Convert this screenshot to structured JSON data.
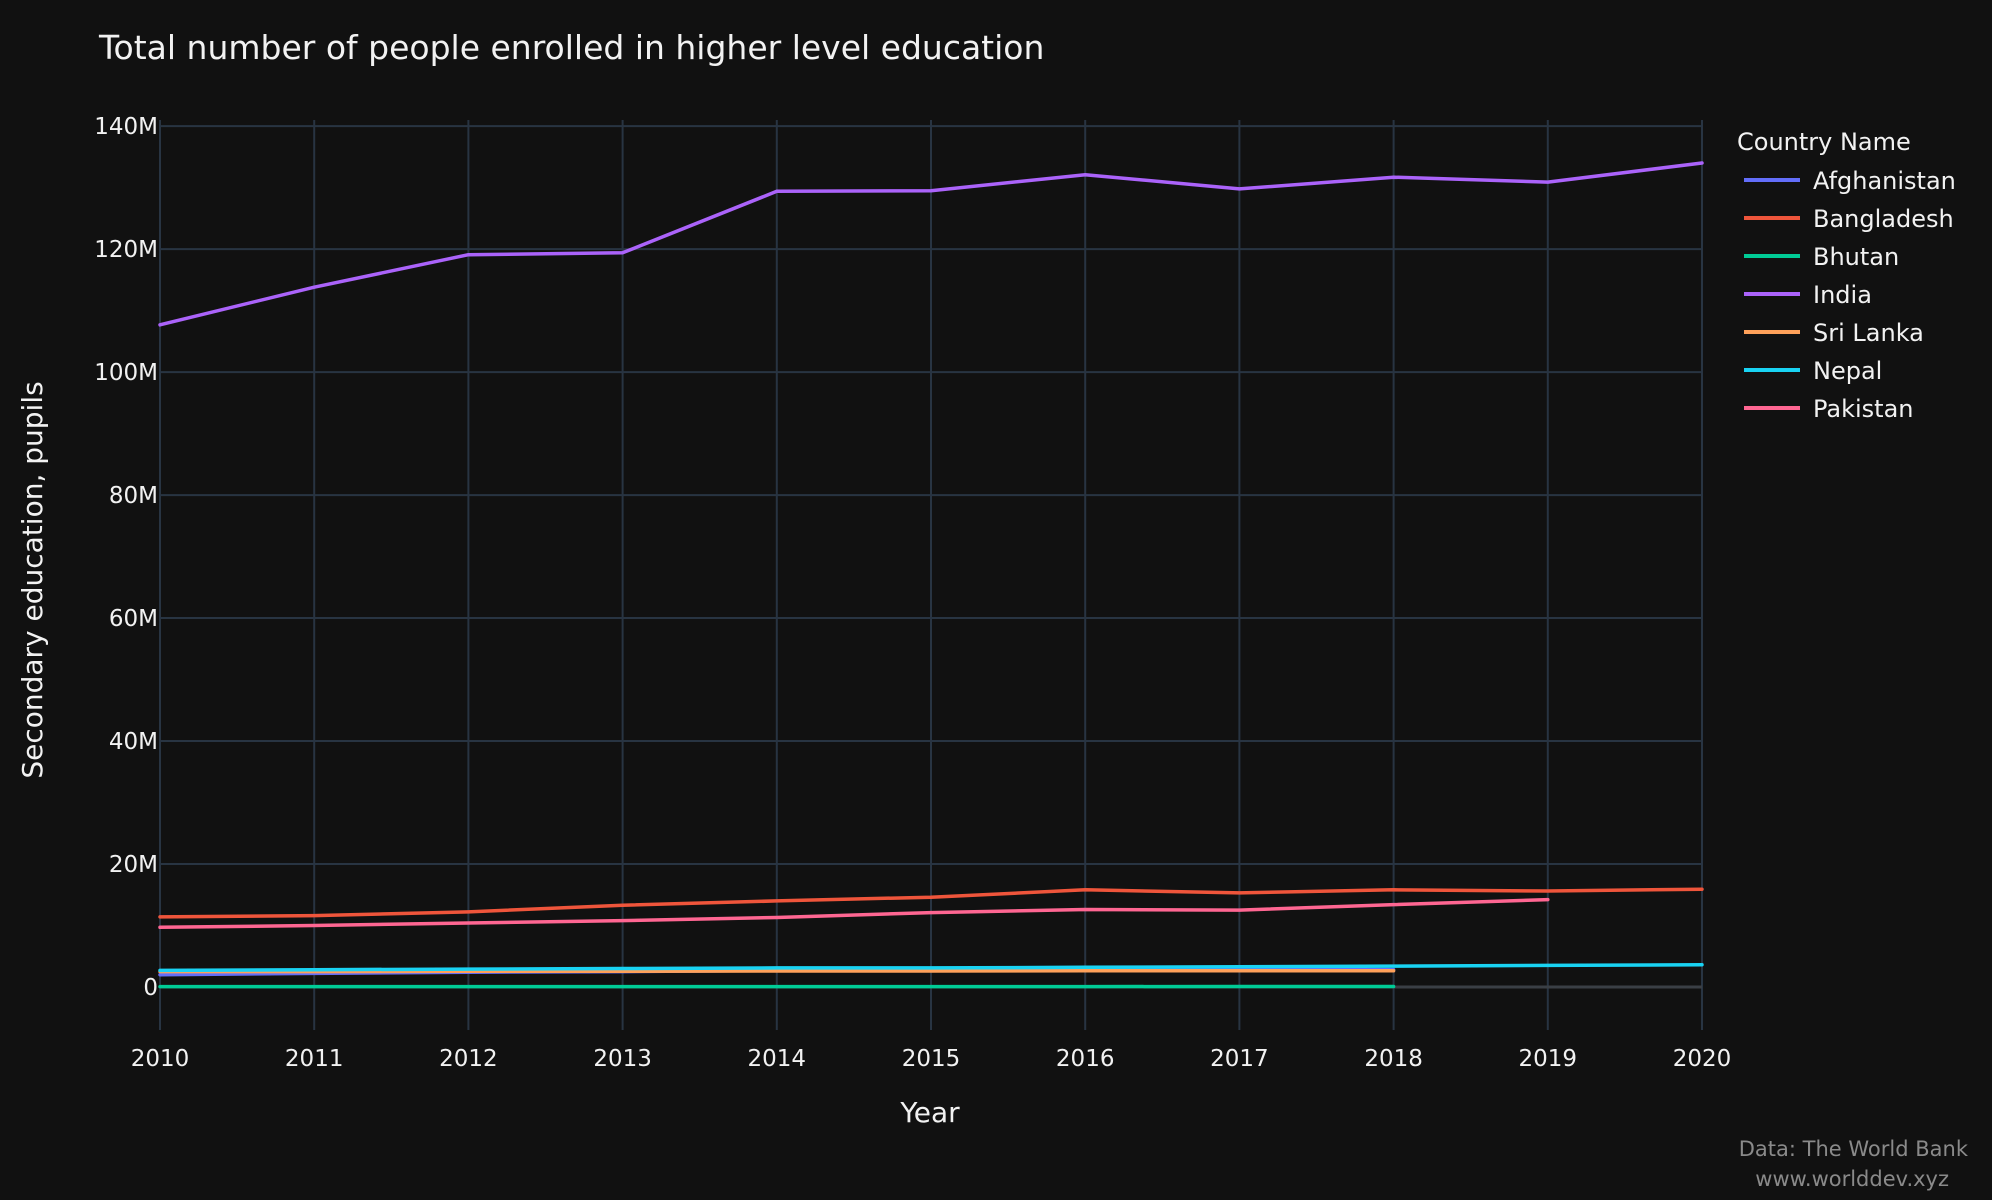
{
  "source": {
    "line1": "Data: The World Bank",
    "line2": "www.worlddev.xyz"
  },
  "chart_data": {
    "type": "line",
    "title": "Total number of people enrolled in higher level education",
    "xlabel": "Year",
    "ylabel": "Secondary education, pupils",
    "xlim": [
      2010,
      2020
    ],
    "ylim": [
      -7000000,
      141000000
    ],
    "x_ticks": [
      2010,
      2011,
      2012,
      2013,
      2014,
      2015,
      2016,
      2017,
      2018,
      2019,
      2020
    ],
    "y_ticks": [
      {
        "value": 0,
        "label": "0"
      },
      {
        "value": 20000000,
        "label": "20M"
      },
      {
        "value": 40000000,
        "label": "40M"
      },
      {
        "value": 60000000,
        "label": "60M"
      },
      {
        "value": 80000000,
        "label": "80M"
      },
      {
        "value": 100000000,
        "label": "100M"
      },
      {
        "value": 120000000,
        "label": "120M"
      },
      {
        "value": 140000000,
        "label": "140M"
      }
    ],
    "grid": true,
    "legend": {
      "title": "Country Name",
      "position": "right"
    },
    "series": [
      {
        "name": "Afghanistan",
        "color": "#636efa",
        "x": [
          2010,
          2011,
          2012,
          2013,
          2014,
          2015,
          2016,
          2017,
          2018
        ],
        "y": [
          2000000,
          2200000,
          2400000,
          2500000,
          2700000,
          2700000,
          2800000,
          2800000,
          2800000
        ]
      },
      {
        "name": "Bangladesh",
        "color": "#ef553b",
        "x": [
          2010,
          2011,
          2012,
          2013,
          2014,
          2015,
          2016,
          2017,
          2018,
          2019,
          2020
        ],
        "y": [
          11400000,
          11600000,
          12200000,
          13300000,
          14000000,
          14600000,
          15800000,
          15300000,
          15800000,
          15600000,
          15900000
        ]
      },
      {
        "name": "Bhutan",
        "color": "#00cc96",
        "x": [
          2010,
          2011,
          2012,
          2013,
          2014,
          2015,
          2016,
          2017,
          2018
        ],
        "y": [
          60000,
          62000,
          63000,
          64000,
          65000,
          66000,
          66000,
          67000,
          67000
        ]
      },
      {
        "name": "India",
        "color": "#ab63fa",
        "x": [
          2010,
          2011,
          2012,
          2013,
          2014,
          2015,
          2016,
          2017,
          2018,
          2019,
          2020
        ],
        "y": [
          107700000,
          113800000,
          119100000,
          119400000,
          129400000,
          129500000,
          132100000,
          129800000,
          131700000,
          130900000,
          134000000
        ]
      },
      {
        "name": "Sri Lanka",
        "color": "#ffa15a",
        "x": [
          2010,
          2011,
          2012,
          2013,
          2014,
          2015,
          2016,
          2017,
          2018
        ],
        "y": [
          2500000,
          2500000,
          2550000,
          2550000,
          2600000,
          2600000,
          2650000,
          2650000,
          2650000
        ]
      },
      {
        "name": "Nepal",
        "color": "#19d3f3",
        "x": [
          2010,
          2011,
          2012,
          2013,
          2014,
          2015,
          2016,
          2017,
          2018,
          2019,
          2020
        ],
        "y": [
          2700000,
          2800000,
          2900000,
          3000000,
          3100000,
          3100000,
          3200000,
          3300000,
          3400000,
          3500000,
          3600000
        ]
      },
      {
        "name": "Pakistan",
        "color": "#ff6692",
        "x": [
          2010,
          2011,
          2012,
          2013,
          2014,
          2015,
          2016,
          2017,
          2018,
          2019
        ],
        "y": [
          9700000,
          10000000,
          10400000,
          10800000,
          11300000,
          12100000,
          12600000,
          12500000,
          13400000,
          14200000
        ]
      }
    ]
  }
}
